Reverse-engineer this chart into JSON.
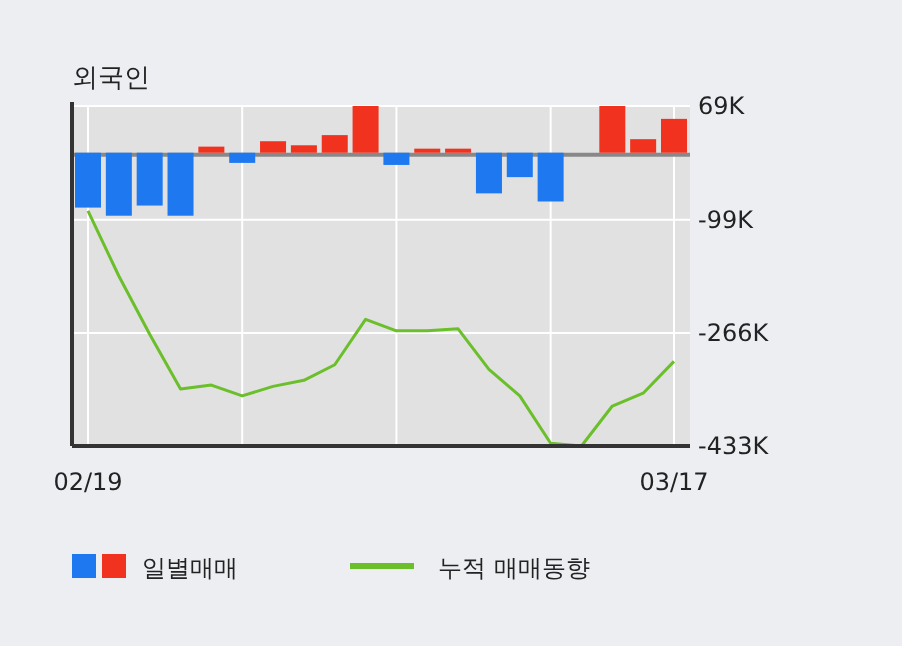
{
  "chart_data": {
    "type": "bar",
    "title": "외국인",
    "categories": [
      "02/19",
      null,
      null,
      null,
      null,
      null,
      null,
      null,
      null,
      null,
      null,
      null,
      null,
      null,
      null,
      null,
      null,
      null,
      null,
      "03/17"
    ],
    "series": [
      {
        "name": "일별매매",
        "colors": [
          "#1e78f0",
          "#1e78f0",
          "#1e78f0",
          "#1e78f0",
          "#f0321e",
          "#1e78f0",
          "#f0321e",
          "#f0321e",
          "#f0321e",
          "#f0321e",
          "#1e78f0",
          "#f0321e",
          "#f0321e",
          "#1e78f0",
          "#1e78f0",
          "#1e78f0",
          "#f0321e",
          "#f0321e",
          "#f0321e",
          "#f0321e"
        ],
        "values": [
          -81,
          -93,
          -78,
          -93,
          9,
          -15,
          17,
          11,
          26,
          69,
          -18,
          6,
          6,
          -60,
          -36,
          -72,
          0,
          69,
          20,
          50
        ]
      },
      {
        "name": "누적 매매동향",
        "type": "line",
        "color": "#6abf2a",
        "values": [
          -86,
          -182,
          -268,
          -349,
          -343,
          -359,
          -345,
          -336,
          -313,
          -246,
          -263,
          -263,
          -260,
          -320,
          -359,
          -429,
          -433,
          -374,
          -355,
          -308
        ]
      }
    ],
    "ylim": [
      -433,
      69
    ],
    "yticks": [
      {
        "value": 69,
        "label": "69K"
      },
      {
        "value": -99,
        "label": "-99K"
      },
      {
        "value": -266,
        "label": "-266K"
      },
      {
        "value": -433,
        "label": "-433K"
      }
    ],
    "grid": true,
    "legend": "bottom"
  }
}
